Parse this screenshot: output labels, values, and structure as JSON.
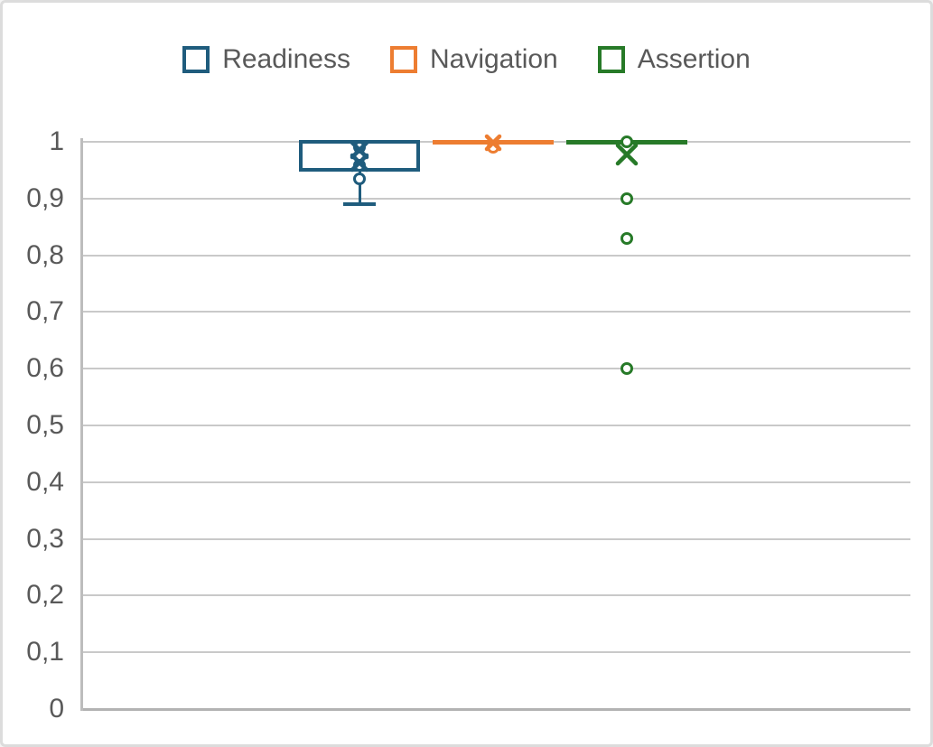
{
  "window": {
    "background": "#ffffff",
    "border_color": "#dcdcdc"
  },
  "legend": {
    "position": "top",
    "text_color": "#595959",
    "items": [
      {
        "label": "Readiness",
        "color": "#1F5C7D"
      },
      {
        "label": "Navigation",
        "color": "#ED7D31"
      },
      {
        "label": "Assertion",
        "color": "#277A28"
      }
    ]
  },
  "chart_data": {
    "type": "boxplot",
    "orientation": "vertical",
    "title": "",
    "xlabel": "",
    "ylabel": "",
    "grid": {
      "show": true,
      "color": "#c9c9c9",
      "baseline_color": "#b3b3b3"
    },
    "axis_text_color": "#595959",
    "legend_position": "top",
    "y_axis": {
      "min": 0,
      "max": 1,
      "tick_interval": 0.1,
      "decimal_separator": ",",
      "tick_labels": [
        "1",
        "0,9",
        "0,8",
        "0,7",
        "0,6",
        "0,5",
        "0,4",
        "0,3",
        "0,2",
        "0,1",
        "0"
      ]
    },
    "x_axis": {
      "labels": []
    },
    "series": [
      {
        "name": "Readiness",
        "color": "#1F5C7D",
        "q1": 0.95,
        "median": 1.0,
        "q3": 1.0,
        "whisker_low": 0.89,
        "whisker_high": 1.0,
        "mean_markers": [
          0.985,
          0.963
        ],
        "outliers": [
          0.99,
          0.958,
          0.935
        ]
      },
      {
        "name": "Navigation",
        "color": "#ED7D31",
        "q1": 1.0,
        "median": 1.0,
        "q3": 1.0,
        "whisker_low": 1.0,
        "whisker_high": 1.0,
        "mean_markers": [
          0.998
        ],
        "outliers": [
          0.99
        ]
      },
      {
        "name": "Assertion",
        "color": "#277A28",
        "q1": 1.0,
        "median": 1.0,
        "q3": 1.0,
        "whisker_low": 1.0,
        "whisker_high": 1.0,
        "mean_markers": [
          0.978
        ],
        "outliers": [
          1.0,
          0.9,
          0.83,
          0.6
        ]
      }
    ]
  }
}
